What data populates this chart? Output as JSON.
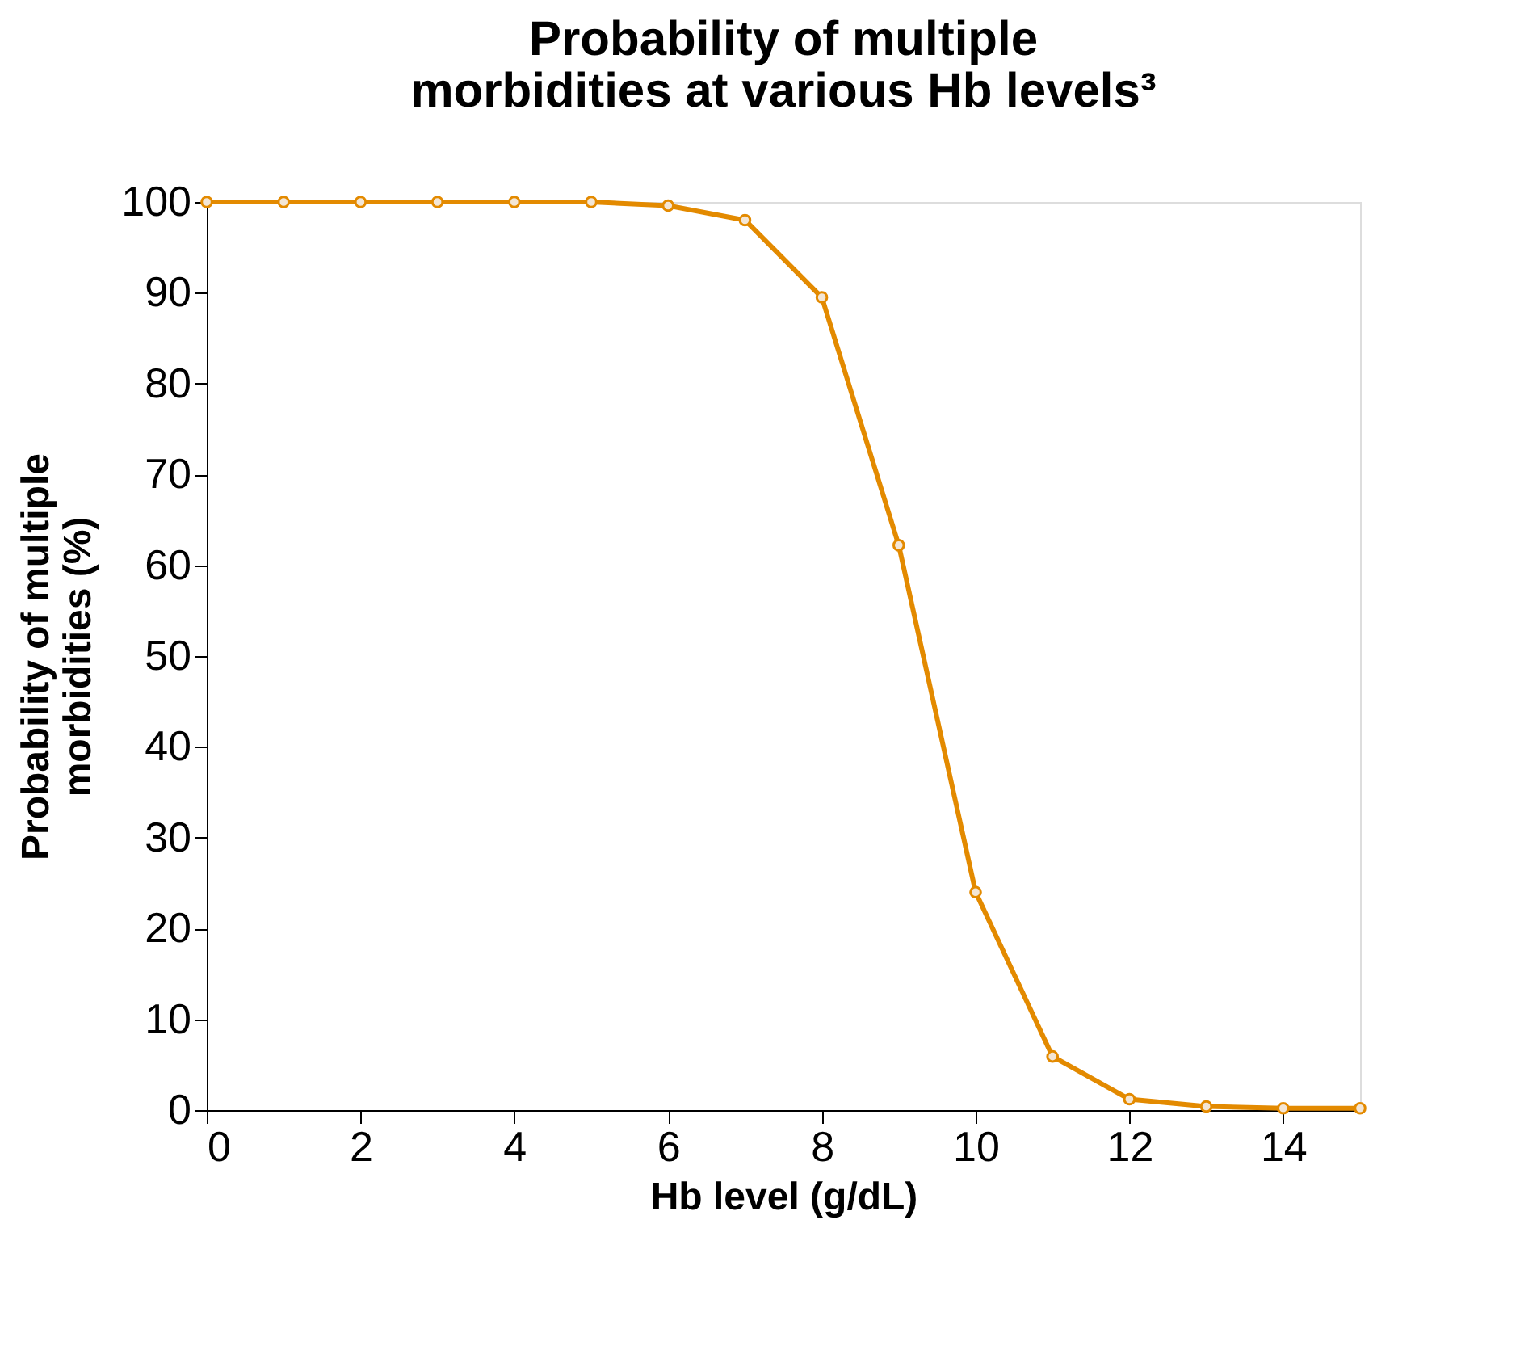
{
  "chart_data": {
    "type": "line",
    "title": [
      "Probability of multiple",
      "morbidities at various Hb levels³"
    ],
    "xlabel": "Hb level (g/dL)",
    "ylabel": [
      "Probability of multiple",
      "morbidities (%)"
    ],
    "x": [
      0,
      1,
      2,
      3,
      4,
      5,
      6,
      7,
      8,
      9,
      10,
      11,
      12,
      13,
      14,
      15
    ],
    "series": [
      {
        "color": "#e38a00",
        "values": [
          100,
          100,
          100,
          100,
          100,
          100,
          99.6,
          98,
          89.5,
          62.2,
          24,
          5.9,
          1.2,
          0.4,
          0.2,
          0.2
        ]
      }
    ],
    "xlim": [
      0,
      15
    ],
    "xticks": [
      0,
      2,
      4,
      6,
      8,
      10,
      12,
      14
    ],
    "ylim": [
      0,
      100
    ],
    "yticks": [
      0,
      10,
      20,
      30,
      40,
      50,
      60,
      70,
      80,
      90,
      100
    ],
    "grid": false,
    "marker": "circle",
    "line_style": "solid"
  }
}
